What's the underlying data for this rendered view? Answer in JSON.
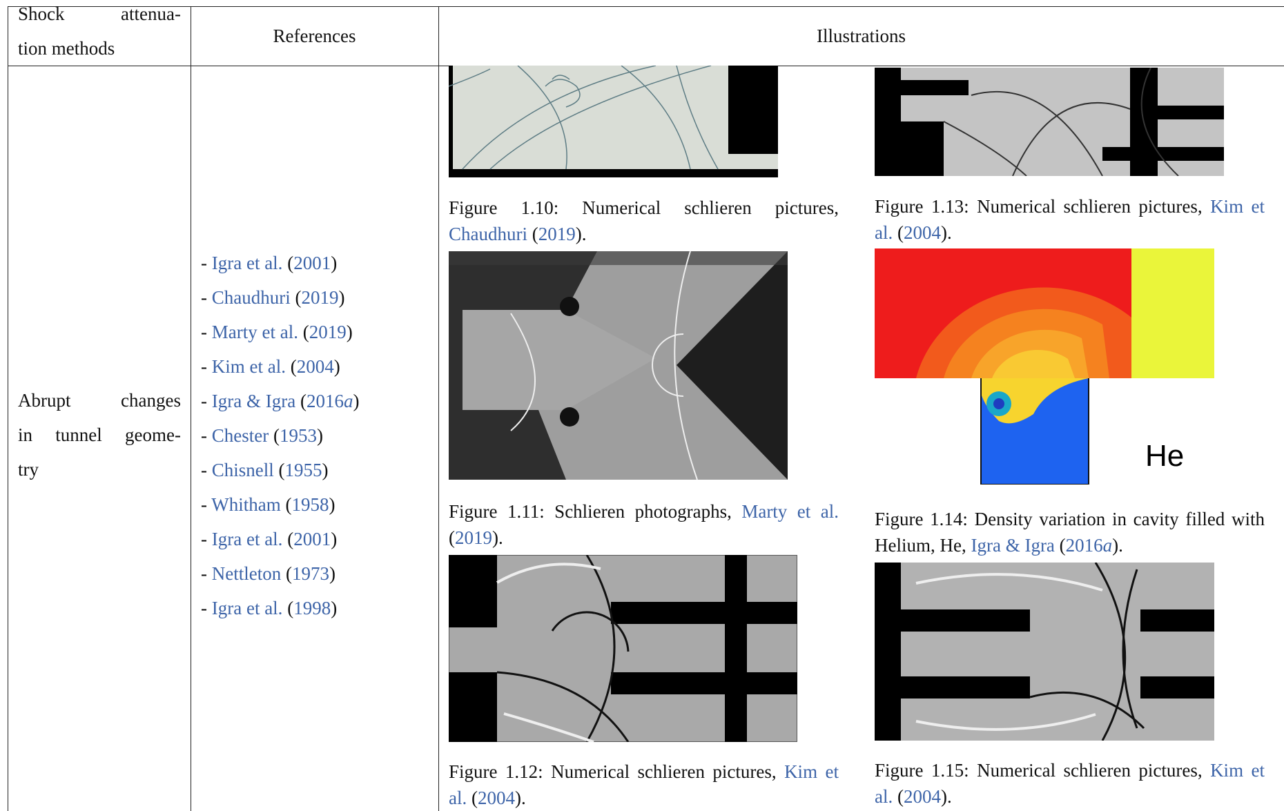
{
  "table": {
    "header": {
      "method": [
        "Shock attenua-",
        "tion methods"
      ],
      "references": "References",
      "illustrations": "Illustrations"
    },
    "row": {
      "method": [
        "Abrupt changes",
        "in tunnel geome-",
        "try"
      ],
      "references": [
        [
          {
            "text": "- "
          },
          {
            "text": "Igra et al.",
            "link": true
          },
          {
            "text": " ("
          },
          {
            "text": "2001",
            "link": true
          },
          {
            "text": ")"
          }
        ],
        [
          {
            "text": "- "
          },
          {
            "text": "Chaudhuri",
            "link": true
          },
          {
            "text": " ("
          },
          {
            "text": "2019",
            "link": true
          },
          {
            "text": ")"
          }
        ],
        [
          {
            "text": "- "
          },
          {
            "text": "Marty et al.",
            "link": true
          },
          {
            "text": " ("
          },
          {
            "text": "2019",
            "link": true
          },
          {
            "text": ")"
          }
        ],
        [
          {
            "text": "- "
          },
          {
            "text": "Kim et al.",
            "link": true
          },
          {
            "text": " ("
          },
          {
            "text": "2004",
            "link": true
          },
          {
            "text": ")"
          }
        ],
        [
          {
            "text": "- "
          },
          {
            "text": "Igra & Igra",
            "link": true
          },
          {
            "text": " ("
          },
          {
            "text": "2016",
            "link": true
          },
          {
            "text": "a",
            "link": true,
            "italic": true
          },
          {
            "text": ")"
          }
        ],
        [
          {
            "text": "- "
          },
          {
            "text": "Chester",
            "link": true
          },
          {
            "text": " ("
          },
          {
            "text": "1953",
            "link": true
          },
          {
            "text": ")"
          }
        ],
        [
          {
            "text": "- "
          },
          {
            "text": "Chisnell",
            "link": true
          },
          {
            "text": " ("
          },
          {
            "text": "1955",
            "link": true
          },
          {
            "text": ")"
          }
        ],
        [
          {
            "text": "- "
          },
          {
            "text": "Whitham",
            "link": true
          },
          {
            "text": " ("
          },
          {
            "text": "1958",
            "link": true
          },
          {
            "text": ")"
          }
        ],
        [
          {
            "text": "- "
          },
          {
            "text": "Igra et al.",
            "link": true
          },
          {
            "text": " ("
          },
          {
            "text": "2001",
            "link": true
          },
          {
            "text": ")"
          }
        ],
        [
          {
            "text": "- "
          },
          {
            "text": "Nettleton",
            "link": true
          },
          {
            "text": " ("
          },
          {
            "text": "1973",
            "link": true
          },
          {
            "text": ")"
          }
        ],
        [
          {
            "text": "- "
          },
          {
            "text": "Igra et al.",
            "link": true
          },
          {
            "text": " ("
          },
          {
            "text": "1998",
            "link": true
          },
          {
            "text": ")"
          }
        ]
      ],
      "figures": [
        {
          "caption": [
            {
              "text": "Figure 1.10: Numerical schlieren pictures, "
            },
            {
              "text": "Chaudhuri",
              "link": true
            },
            {
              "text": " ("
            },
            {
              "text": "2019",
              "link": true
            },
            {
              "text": ")."
            }
          ]
        },
        {
          "caption": [
            {
              "text": "Figure 1.11: Schlieren photographs, "
            },
            {
              "text": "Marty et al.",
              "link": true
            },
            {
              "text": " ("
            },
            {
              "text": "2019",
              "link": true
            },
            {
              "text": ")."
            }
          ]
        },
        {
          "caption": [
            {
              "text": "Figure 1.12: Numerical schlieren pictures, "
            },
            {
              "text": "Kim et al.",
              "link": true
            },
            {
              "text": " ("
            },
            {
              "text": "2004",
              "link": true
            },
            {
              "text": ")."
            }
          ]
        },
        {
          "caption": [
            {
              "text": "Figure 1.13: Numerical schlieren pictures, "
            },
            {
              "text": "Kim et al.",
              "link": true
            },
            {
              "text": " ("
            },
            {
              "text": "2004",
              "link": true
            },
            {
              "text": ")."
            }
          ]
        },
        {
          "caption": [
            {
              "text": "Figure 1.14: Density variation in cavity filled with Helium, He, "
            },
            {
              "text": "Igra & Igra",
              "link": true
            },
            {
              "text": " ("
            },
            {
              "text": "2016",
              "link": true
            },
            {
              "text": "a",
              "link": true,
              "italic": true
            },
            {
              "text": ")."
            }
          ],
          "image_label": "He"
        },
        {
          "caption": [
            {
              "text": "Figure 1.15: Numerical schlieren pictures, "
            },
            {
              "text": "Kim et al.",
              "link": true
            },
            {
              "text": " ("
            },
            {
              "text": "2004",
              "link": true
            },
            {
              "text": ")."
            }
          ]
        }
      ]
    }
  }
}
